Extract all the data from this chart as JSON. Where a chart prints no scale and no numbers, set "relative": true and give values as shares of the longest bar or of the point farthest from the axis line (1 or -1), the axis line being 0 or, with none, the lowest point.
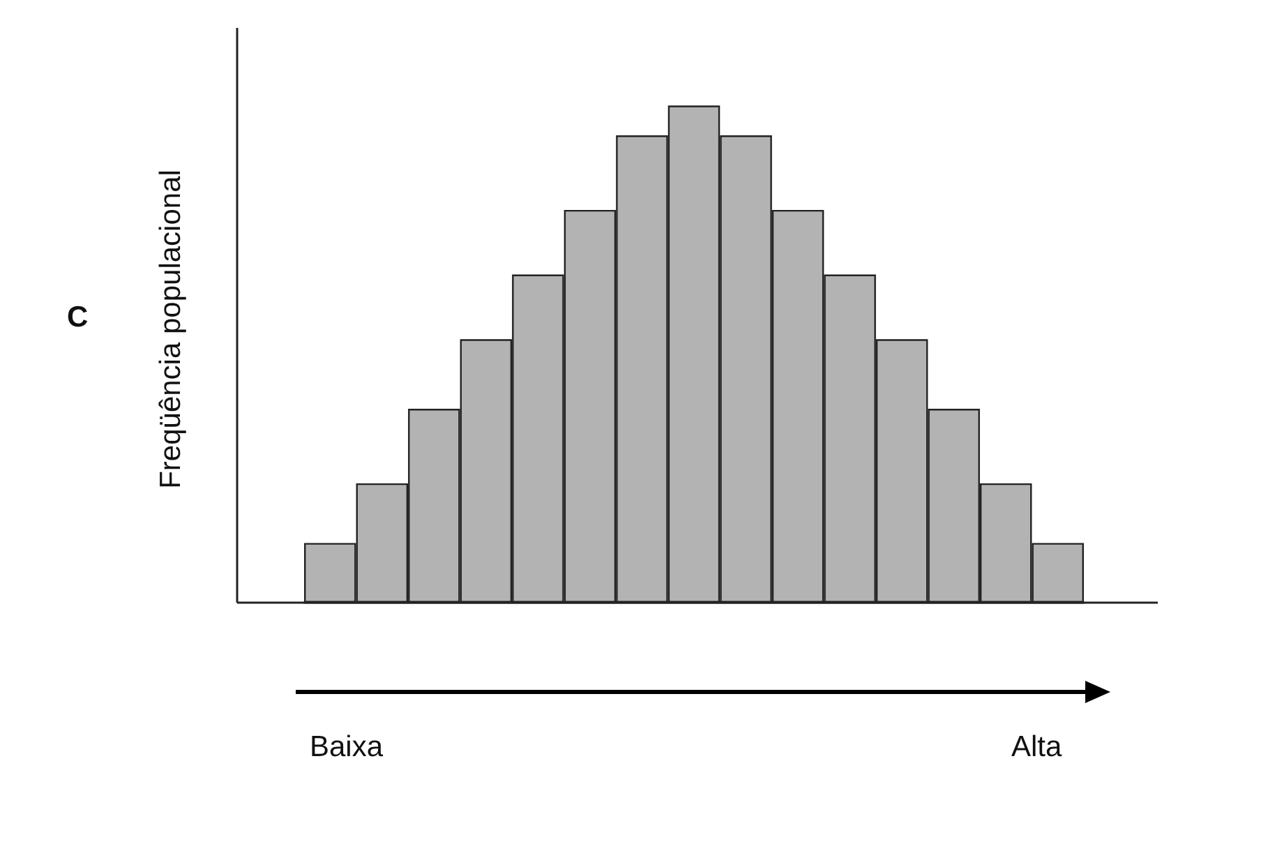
{
  "chart_data": {
    "type": "bar",
    "relative": true,
    "ylabel": "Freqüência populacional",
    "categories": [
      null,
      null,
      null,
      null,
      null,
      null,
      null,
      null,
      null,
      null,
      null,
      null,
      null,
      null,
      null
    ],
    "values": [
      0.12,
      0.24,
      0.39,
      0.53,
      0.66,
      0.79,
      0.94,
      1,
      0.94,
      0.79,
      0.66,
      0.53,
      0.39,
      0.24,
      0.12
    ],
    "color": "#b3b3b3",
    "annotations": [
      "C",
      "Baixa",
      "Alta"
    ]
  }
}
